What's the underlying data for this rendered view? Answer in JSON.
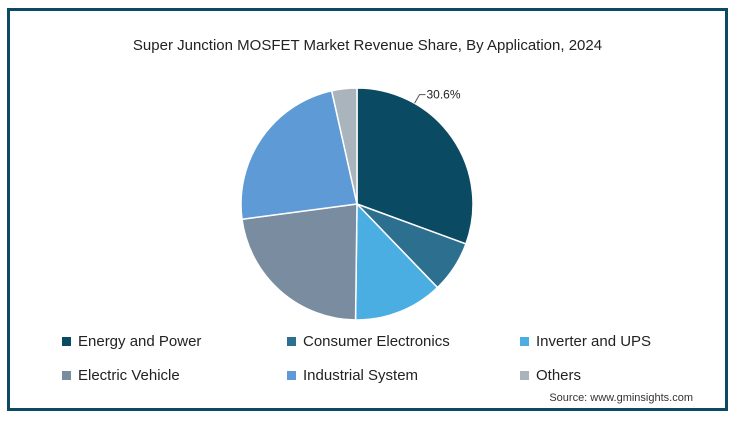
{
  "chart_data": {
    "type": "pie",
    "title": "Super Junction MOSFET Market Revenue Share, By Application, 2024",
    "slices": [
      {
        "name": "Energy and Power",
        "value": 30.6,
        "color": "#0b4a63",
        "label": "30.6%"
      },
      {
        "name": "Consumer Electronics",
        "value": 7.2,
        "color": "#2d6f8f",
        "label": ""
      },
      {
        "name": "Inverter and UPS",
        "value": 12.4,
        "color": "#4aaee2",
        "label": ""
      },
      {
        "name": "Electric Vehicle",
        "value": 22.7,
        "color": "#7a8da0",
        "label": ""
      },
      {
        "name": "Industrial System",
        "value": 23.6,
        "color": "#5e9ad6",
        "label": ""
      },
      {
        "name": "Others",
        "value": 3.5,
        "color": "#aab4bd",
        "label": ""
      }
    ],
    "start_angle_deg": 0,
    "direction": "clockwise",
    "legend_position": "bottom"
  },
  "source": "Source: www.gminsights.com"
}
